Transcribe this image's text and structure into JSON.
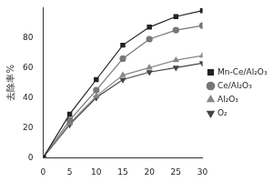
{
  "chart_data": {
    "type": "line",
    "y_label": "去除率%",
    "x": [
      0,
      5,
      10,
      15,
      20,
      25,
      30
    ],
    "series": [
      {
        "name": "Mn-Ce/Al₂O₃",
        "color": "#222222",
        "marker": "square",
        "values": [
          0,
          29,
          52,
          75,
          87,
          94,
          98
        ]
      },
      {
        "name": "Ce/Al₂O₃",
        "color": "#777777",
        "marker": "circle",
        "values": [
          0,
          25,
          45,
          66,
          79,
          85,
          88
        ]
      },
      {
        "name": "Al₂O₃",
        "color": "#888888",
        "marker": "triangle-up",
        "values": [
          0,
          23,
          41,
          55,
          60,
          65,
          68
        ]
      },
      {
        "name": "O₂",
        "color": "#444444",
        "marker": "triangle-down",
        "values": [
          0,
          22,
          40,
          52,
          57,
          60,
          63
        ]
      }
    ],
    "xlim": [
      0,
      30
    ],
    "xticks": [
      0,
      5,
      10,
      15,
      20,
      25,
      30
    ],
    "ylim": [
      0,
      100
    ],
    "yticks": [
      0,
      20,
      40,
      60,
      80
    ],
    "grid": false,
    "legend": "right"
  }
}
